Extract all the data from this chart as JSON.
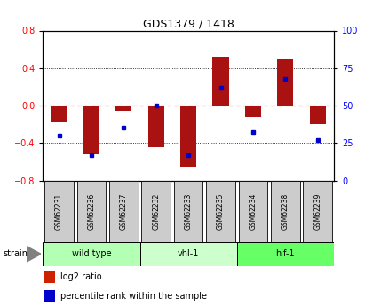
{
  "title": "GDS1379 / 1418",
  "samples": [
    "GSM62231",
    "GSM62236",
    "GSM62237",
    "GSM62232",
    "GSM62233",
    "GSM62235",
    "GSM62234",
    "GSM62238",
    "GSM62239"
  ],
  "log2_ratio": [
    -0.18,
    -0.52,
    -0.06,
    -0.44,
    -0.65,
    0.52,
    -0.12,
    0.5,
    -0.2
  ],
  "percentile_rank": [
    30,
    17,
    35,
    50,
    17,
    62,
    32,
    68,
    27
  ],
  "groups": [
    {
      "label": "wild type",
      "start": 0,
      "end": 3,
      "color": "#b3ffb3"
    },
    {
      "label": "vhl-1",
      "start": 3,
      "end": 6,
      "color": "#ccffcc"
    },
    {
      "label": "hif-1",
      "start": 6,
      "end": 9,
      "color": "#66ff66"
    }
  ],
  "ylim_left": [
    -0.8,
    0.8
  ],
  "ylim_right": [
    0,
    100
  ],
  "yticks_left": [
    -0.8,
    -0.4,
    0.0,
    0.4,
    0.8
  ],
  "yticks_right": [
    0,
    25,
    50,
    75,
    100
  ],
  "bar_color": "#aa1111",
  "dot_color": "#0000cc",
  "hline_color": "#cc0000",
  "grid_color": "#000000",
  "sample_box_color": "#cccccc",
  "legend_red": "#cc2200",
  "legend_blue": "#0000cc"
}
